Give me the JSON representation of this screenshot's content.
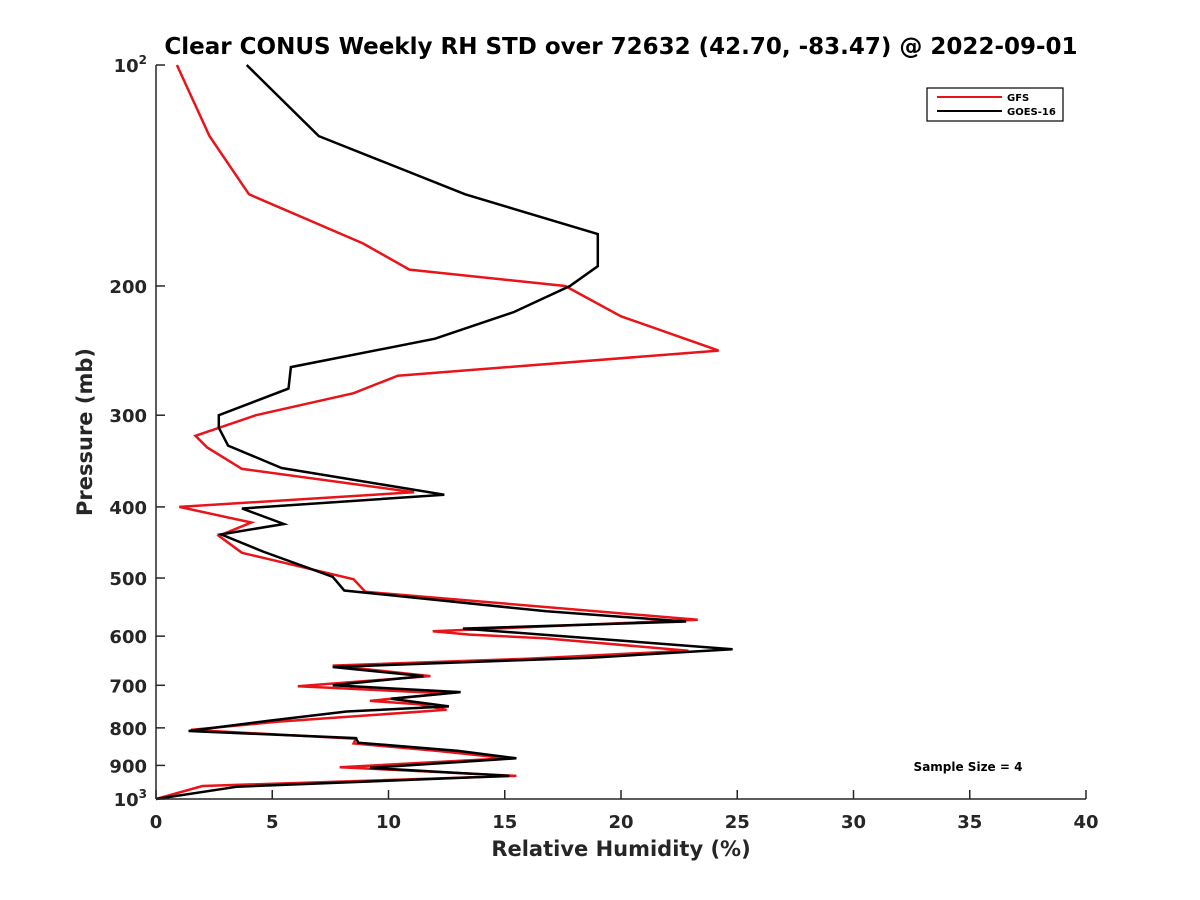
{
  "chart_data": {
    "type": "line",
    "title": "Clear CONUS Weekly RH STD over 72632 (42.70, -83.47) @ 2022-09-01",
    "xlabel": "Relative Humidity (%)",
    "ylabel": "Pressure (mb)",
    "xlim": [
      0,
      40
    ],
    "ylim": [
      100,
      1000
    ],
    "y_scale": "log",
    "y_reversed": true,
    "x_ticks": [
      0,
      5,
      10,
      15,
      20,
      25,
      30,
      35,
      40
    ],
    "y_ticks": [
      {
        "value": 100,
        "base": "10",
        "exp": "2"
      },
      {
        "value": 200,
        "label": "200"
      },
      {
        "value": 300,
        "label": "300"
      },
      {
        "value": 400,
        "label": "400"
      },
      {
        "value": 500,
        "label": "500"
      },
      {
        "value": 600,
        "label": "600"
      },
      {
        "value": 700,
        "label": "700"
      },
      {
        "value": 800,
        "label": "800"
      },
      {
        "value": 900,
        "label": "900"
      },
      {
        "value": 1000,
        "base": "10",
        "exp": "3"
      }
    ],
    "legend_position": "top-right",
    "grid": false,
    "annotation": "Sample Size = 4",
    "series": [
      {
        "name": "GFS",
        "color": "#e8141a",
        "points": [
          [
            0.9,
            100
          ],
          [
            2.3,
            125
          ],
          [
            4.0,
            150
          ],
          [
            8.9,
            175
          ],
          [
            10.9,
            190
          ],
          [
            17.6,
            200
          ],
          [
            20.0,
            220
          ],
          [
            24.2,
            245
          ],
          [
            10.4,
            265
          ],
          [
            8.5,
            280
          ],
          [
            4.3,
            300
          ],
          [
            1.7,
            320
          ],
          [
            2.2,
            332
          ],
          [
            3.7,
            355
          ],
          [
            11.1,
            382
          ],
          [
            1.0,
            400
          ],
          [
            4.1,
            420
          ],
          [
            2.7,
            438
          ],
          [
            3.7,
            462
          ],
          [
            8.5,
            502
          ],
          [
            9.0,
            522
          ],
          [
            23.3,
            570
          ],
          [
            11.9,
            591
          ],
          [
            13.5,
            597
          ],
          [
            16.7,
            604
          ],
          [
            22.9,
            628
          ],
          [
            16.0,
            644
          ],
          [
            7.6,
            658
          ],
          [
            11.8,
            680
          ],
          [
            6.1,
            702
          ],
          [
            12.5,
            718
          ],
          [
            9.2,
            735
          ],
          [
            11.3,
            743
          ],
          [
            12.5,
            756
          ],
          [
            5.2,
            785
          ],
          [
            1.5,
            805
          ],
          [
            8.6,
            828
          ],
          [
            8.5,
            840
          ],
          [
            12.1,
            860
          ],
          [
            15.1,
            880
          ],
          [
            7.9,
            905
          ],
          [
            15.5,
            930
          ],
          [
            2.0,
            960
          ],
          [
            0.0,
            1000
          ]
        ]
      },
      {
        "name": "GOES-16",
        "color": "#000000",
        "points": [
          [
            3.9,
            100
          ],
          [
            7.0,
            125
          ],
          [
            13.3,
            150
          ],
          [
            19.0,
            170
          ],
          [
            19.0,
            188
          ],
          [
            17.8,
            200
          ],
          [
            15.4,
            217
          ],
          [
            12.0,
            236
          ],
          [
            5.8,
            258
          ],
          [
            5.7,
            276
          ],
          [
            2.7,
            300
          ],
          [
            2.7,
            312
          ],
          [
            3.1,
            330
          ],
          [
            5.4,
            354
          ],
          [
            12.4,
            385
          ],
          [
            3.7,
            402
          ],
          [
            5.5,
            422
          ],
          [
            2.8,
            436
          ],
          [
            4.6,
            460
          ],
          [
            7.6,
            498
          ],
          [
            8.1,
            520
          ],
          [
            16.8,
            555
          ],
          [
            22.8,
            573
          ],
          [
            13.2,
            586
          ],
          [
            17.8,
            601
          ],
          [
            24.8,
            625
          ],
          [
            18.7,
            642
          ],
          [
            7.6,
            661
          ],
          [
            11.5,
            680
          ],
          [
            7.6,
            700
          ],
          [
            13.1,
            715
          ],
          [
            10.1,
            730
          ],
          [
            12.6,
            748
          ],
          [
            8.2,
            760
          ],
          [
            4.9,
            782
          ],
          [
            1.4,
            808
          ],
          [
            8.6,
            826
          ],
          [
            8.7,
            838
          ],
          [
            13.0,
            860
          ],
          [
            15.5,
            880
          ],
          [
            9.2,
            907
          ],
          [
            15.2,
            930
          ],
          [
            3.5,
            962
          ],
          [
            0.0,
            1000
          ]
        ]
      }
    ]
  }
}
